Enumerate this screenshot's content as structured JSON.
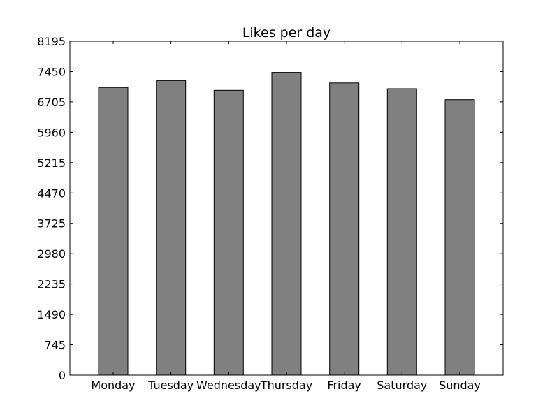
{
  "chart_data": {
    "type": "bar",
    "title": "Likes per day",
    "xlabel": "",
    "ylabel": "",
    "categories": [
      "Monday",
      "Tuesday",
      "Wednesday",
      "Thursday",
      "Friday",
      "Saturday",
      "Sunday"
    ],
    "values": [
      7060,
      7230,
      6990,
      7430,
      7170,
      7030,
      6760
    ],
    "ylim": [
      0,
      8195
    ],
    "yticks": [
      "0",
      "745",
      "1490",
      "2235",
      "2980",
      "3725",
      "4470",
      "5215",
      "5960",
      "6705",
      "7450",
      "8195"
    ],
    "grid": false,
    "legend": "none",
    "colors": {
      "bar_fill": "#808080",
      "bar_edge": "#000000",
      "axes_edge": "#000000"
    }
  }
}
